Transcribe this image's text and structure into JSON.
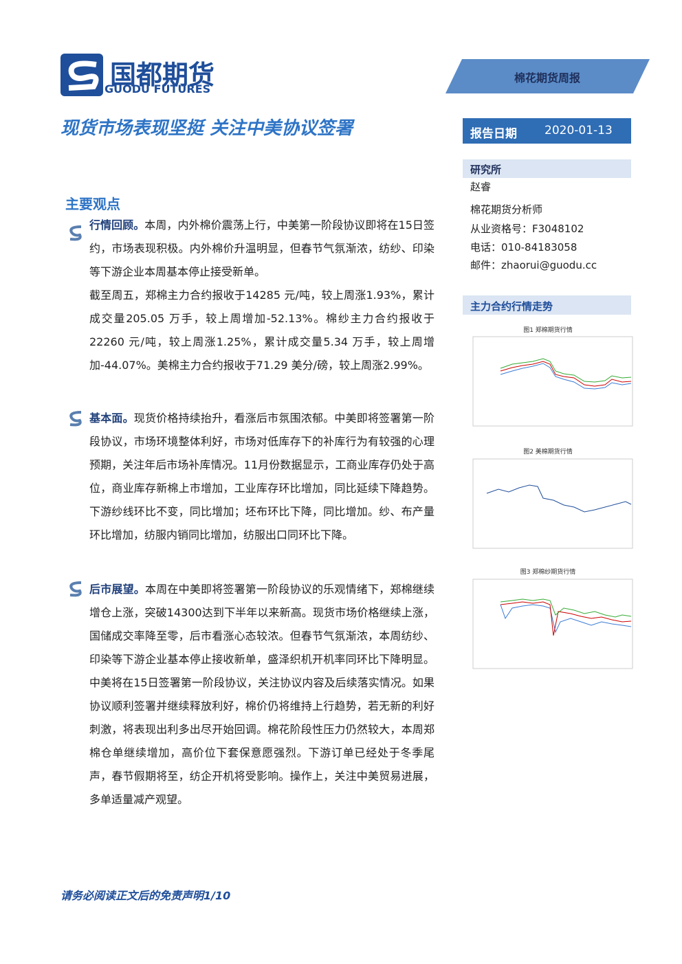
{
  "header": {
    "logo_cn": "国都期货",
    "logo_en": "GUODU FUTURES",
    "report_type": "棉花期货周报",
    "title": "现货市场表现坚挺 关注中美协议签署",
    "report_date_label": "报告日期",
    "report_date": "2020-01-13"
  },
  "sidebar": {
    "institute": "研究所",
    "analyst": "赵睿",
    "analyst_title": "棉花期货分析师",
    "license": "从业资格号：F3048102",
    "phone": "电话：010-84183058",
    "email": "邮件：zhaorui@guodu.cc",
    "chart_section": "主力合约行情走势",
    "figures": [
      "图1 郑棉期货行情",
      "图2 美棉期货行情",
      "图3 郑棉纱期货行情"
    ]
  },
  "main": {
    "section_title": "主要观点",
    "paragraphs": [
      {
        "lead": "行情回顾。",
        "text": "本周，内外棉价震荡上行，中美第一阶段协议即将在15日签约，市场表现积极。内外棉价升温明显，但春节气氛渐浓，纺纱、印染等下游企业本周基本停止接受新单。"
      },
      {
        "text": "截至周五，郑棉主力合约报收于14285 元/吨，较上周涨1.93%，累计成交量205.05 万手，较上周增加-52.13%。棉纱主力合约报收于22260 元/吨，较上周涨1.25%，累计成交量5.34 万手，较上周增加-44.07%。美棉主力合约报收于71.29 美分/磅，较上周涨2.99%。"
      },
      {
        "lead": "基本面。",
        "text": "现货价格持续抬升，看涨后市氛围浓郁。中美即将签署第一阶段协议，市场环境整体利好，市场对低库存下的补库行为有较强的心理预期，关注年后市场补库情况。11月份数据显示，工商业库存仍处于高位，商业库存新棉上市增加，工业库存环比增加，同比延续下降趋势。下游纱线环比不变，同比增加；坯布环比下降，同比增加。纱、布产量环比增加，纺服内销同比增加，纺服出口同环比下降。"
      },
      {
        "lead": "后市展望。",
        "text": "本周在中美即将签署第一阶段协议的乐观情绪下，郑棉继续增仓上涨，突破14300达到下半年以来新高。现货市场价格继续上涨，国储成交率降至零，后市看涨心态较浓。但春节气氛渐浓，本周纺纱、印染等下游企业基本停止接收新单，盛泽织机开机率同环比下降明显。中美将在15日签署第一阶段协议，关注协议内容及后续落实情况。如果协议顺利签署并继续释放利好，棉价仍将维持上行趋势，若无新的利好刺激，将表现出利多出尽开始回调。棉花阶段性压力仍然较大，本周郑棉仓单继续增加，高价位下套保意愿强烈。下游订单已经处于冬季尾声，春节假期将至，纺企开机将受影响。操作上，关注中美贸易进展，多单适量减产观望。"
      }
    ]
  },
  "footer": {
    "disclaimer": "请务必阅读正文后的免责声明1/10"
  }
}
